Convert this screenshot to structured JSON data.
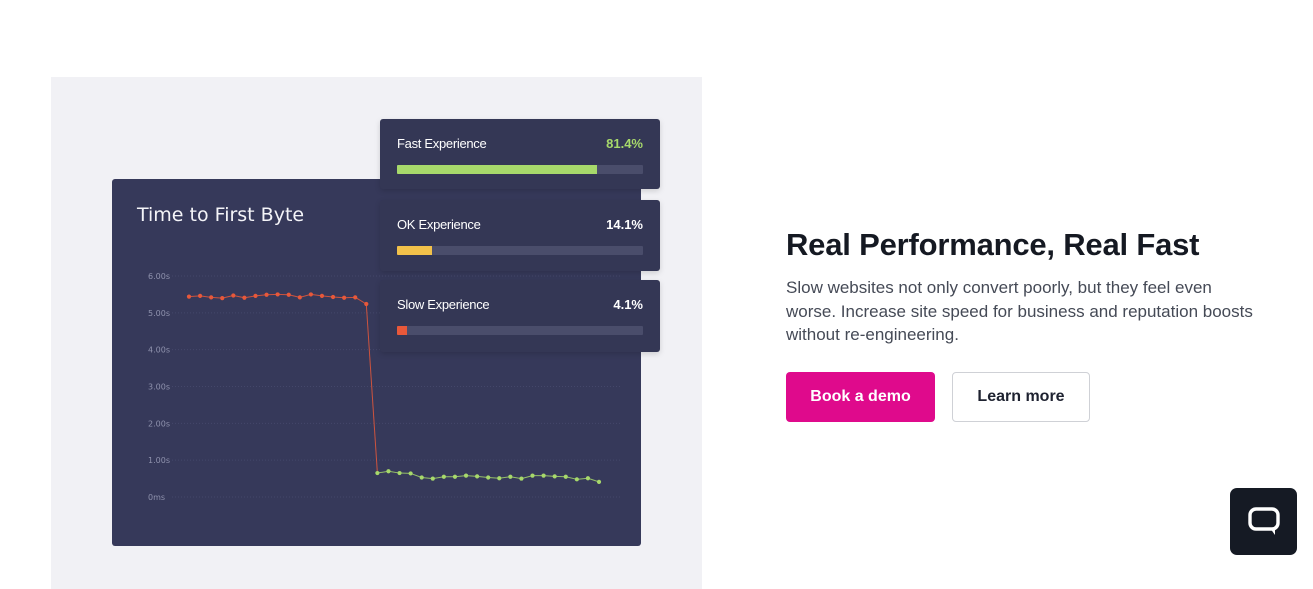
{
  "hero": {
    "headline": "Real Performance, Real Fast",
    "description": "Slow websites not only convert poorly, but they feel even worse. Increase site speed for business and reputation boosts without re-engineering.",
    "primary_button": "Book a demo",
    "secondary_button": "Learn more"
  },
  "experience_cards": [
    {
      "label": "Fast Experience",
      "value": "81.4%",
      "fraction": 0.814,
      "color": "#a7d96b",
      "value_color": "#a7d96b"
    },
    {
      "label": "OK Experience",
      "value": "14.1%",
      "fraction": 0.141,
      "color": "#f2c14a",
      "value_color": "#ffffff"
    },
    {
      "label": "Slow Experience",
      "value": "4.1%",
      "fraction": 0.041,
      "color": "#e8583a",
      "value_color": "#ffffff"
    }
  ],
  "chat": {
    "icon": "chat-bubble-icon"
  },
  "colors": {
    "accent": "#df0a8c",
    "slow_series": "#e8583a",
    "fast_series": "#a7d96b"
  },
  "chart_data": {
    "type": "line",
    "title": "Time to First Byte",
    "xlabel": "",
    "ylabel": "",
    "y_tick_labels": [
      "0ms",
      "1.00s",
      "2.00s",
      "3.00s",
      "4.00s",
      "5.00s",
      "6.00s"
    ],
    "ylim": [
      0,
      6
    ],
    "grid": true,
    "series": [
      {
        "values": [
          5.44,
          5.46,
          5.42,
          5.4,
          5.47,
          5.41,
          5.46,
          5.49,
          5.5,
          5.49,
          5.42,
          5.5,
          5.46,
          5.43,
          5.41,
          5.42,
          5.24,
          0.65,
          0.7,
          0.65,
          0.64,
          0.53,
          0.5,
          0.55,
          0.55,
          0.58,
          0.56,
          0.53,
          0.51,
          0.55,
          0.5,
          0.58,
          0.58,
          0.56,
          0.55,
          0.48,
          0.51,
          0.41
        ]
      }
    ],
    "colors": [
      "#e8583a",
      "#a7d96b"
    ]
  }
}
